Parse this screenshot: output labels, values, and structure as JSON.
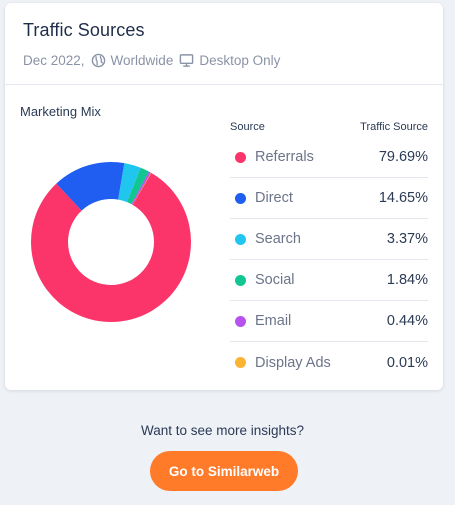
{
  "header": {
    "title": "Traffic Sources",
    "date": "Dec 2022,",
    "region_icon": "globe-icon",
    "region": "Worldwide",
    "device_icon": "desktop-icon",
    "device": "Desktop Only"
  },
  "section": {
    "label": "Marketing Mix"
  },
  "legend": {
    "col_source": "Source",
    "col_value": "Traffic Source"
  },
  "chart_data": {
    "type": "pie",
    "categories": [
      "Referrals",
      "Direct",
      "Search",
      "Social",
      "Email",
      "Display Ads"
    ],
    "values": [
      79.69,
      14.65,
      3.37,
      1.84,
      0.44,
      0.01
    ],
    "labels": [
      "79.69%",
      "14.65%",
      "3.37%",
      "1.84%",
      "0.44%",
      "0.01%"
    ],
    "colors": [
      "#fb3569",
      "#1f5ef1",
      "#21c6ef",
      "#12c691",
      "#b653ee",
      "#fbb334"
    ],
    "donut": true
  },
  "cta": {
    "text": "Want to see more insights?",
    "button": "Go to Similarweb"
  }
}
